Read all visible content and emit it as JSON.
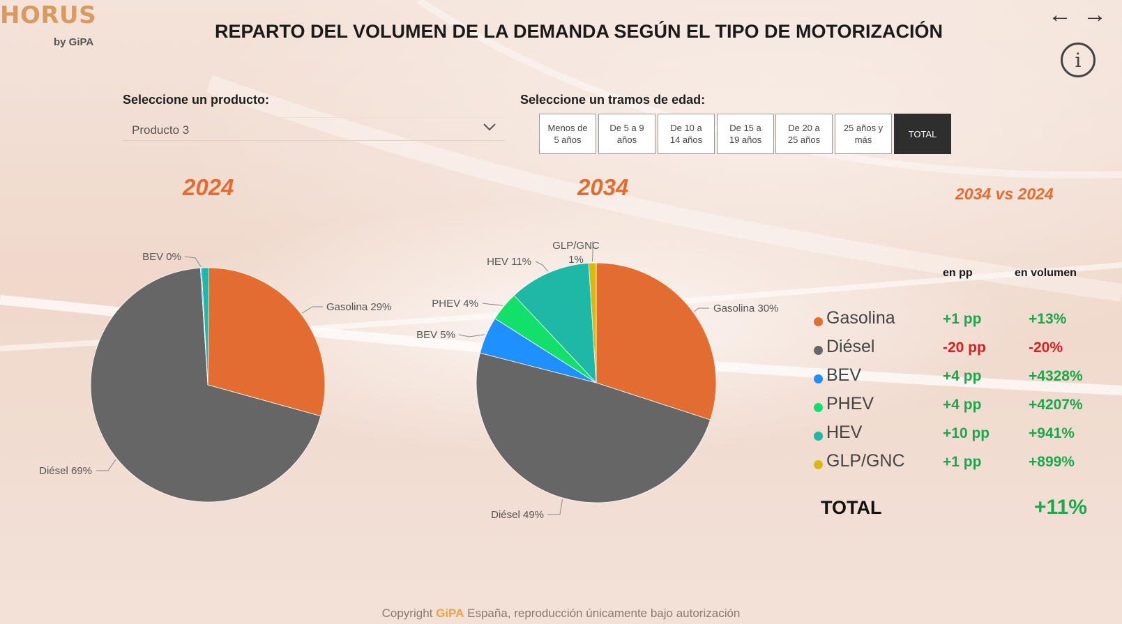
{
  "app": {
    "brand": "HORUS",
    "by_line": "by GiPA"
  },
  "header": {
    "title": "REPARTO DEL VOLUMEN DE LA DEMANDA SEGÚN EL TIPO DE MOTORIZACIÓN",
    "back_icon": "←",
    "forward_icon": "→",
    "info_icon": "i"
  },
  "product_filter": {
    "label": "Seleccione un producto:",
    "selected": "Producto 3"
  },
  "age_filter": {
    "label": "Seleccione un tramos de edad:",
    "options": [
      {
        "line1": "Menos de",
        "line2": "5 años"
      },
      {
        "line1": "De 5 a 9",
        "line2": "años"
      },
      {
        "line1": "De 10 a",
        "line2": "14 años"
      },
      {
        "line1": "De 15 a",
        "line2": "19 años"
      },
      {
        "line1": "De 20 a",
        "line2": "25 años"
      },
      {
        "line1": "25 años y",
        "line2": "más"
      },
      {
        "line1": "TOTAL",
        "line2": ""
      }
    ],
    "active": "TOTAL"
  },
  "colors": {
    "Gasolina": "#e36c30",
    "Diésel": "#666666",
    "BEV": "#1e90ff",
    "PHEV": "#12e06a",
    "HEV": "#1fb7a6",
    "GLP/GNC": "#dcb70e",
    "accent": "#e36c30",
    "positive": "#1aa84a",
    "negative": "#d42020"
  },
  "chart_data": [
    {
      "type": "pie",
      "title": "2024",
      "series": [
        {
          "name": "Gasolina",
          "value": 29,
          "label": "Gasolina 29%"
        },
        {
          "name": "Diésel",
          "value": 69,
          "label": "Diésel 69%"
        },
        {
          "name": "BEV",
          "value": 0,
          "label": "BEV 0%"
        },
        {
          "name": "HEV",
          "value": 1,
          "label": ""
        }
      ]
    },
    {
      "type": "pie",
      "title": "2034",
      "series": [
        {
          "name": "Gasolina",
          "value": 30,
          "label": "Gasolina 30%"
        },
        {
          "name": "Diésel",
          "value": 49,
          "label": "Diésel 49%"
        },
        {
          "name": "BEV",
          "value": 5,
          "label": "BEV 5%"
        },
        {
          "name": "PHEV",
          "value": 4,
          "label": "PHEV 4%"
        },
        {
          "name": "HEV",
          "value": 11,
          "label": "HEV 11%"
        },
        {
          "name": "GLP/GNC",
          "value": 1,
          "label": "GLP/GNC 1%"
        }
      ]
    }
  ],
  "comparison": {
    "title": "2034 vs 2024",
    "col_pp": "en pp",
    "col_vol": "en volumen",
    "rows": [
      {
        "name": "Gasolina",
        "pp": "+1 pp",
        "vol": "+13%"
      },
      {
        "name": "Diésel",
        "pp": "-20 pp",
        "vol": "-20%"
      },
      {
        "name": "BEV",
        "pp": "+4 pp",
        "vol": "+4328%"
      },
      {
        "name": "PHEV",
        "pp": "+4 pp",
        "vol": "+4207%"
      },
      {
        "name": "HEV",
        "pp": "+10 pp",
        "vol": "+941%"
      },
      {
        "name": "GLP/GNC",
        "pp": "+1 pp",
        "vol": "+899%"
      }
    ],
    "total_label": "TOTAL",
    "total_value": "+11%"
  },
  "footer": {
    "prefix": "Copyright ",
    "brand": "GiPA",
    "suffix": " España, reproducción únicamente bajo autorización"
  }
}
